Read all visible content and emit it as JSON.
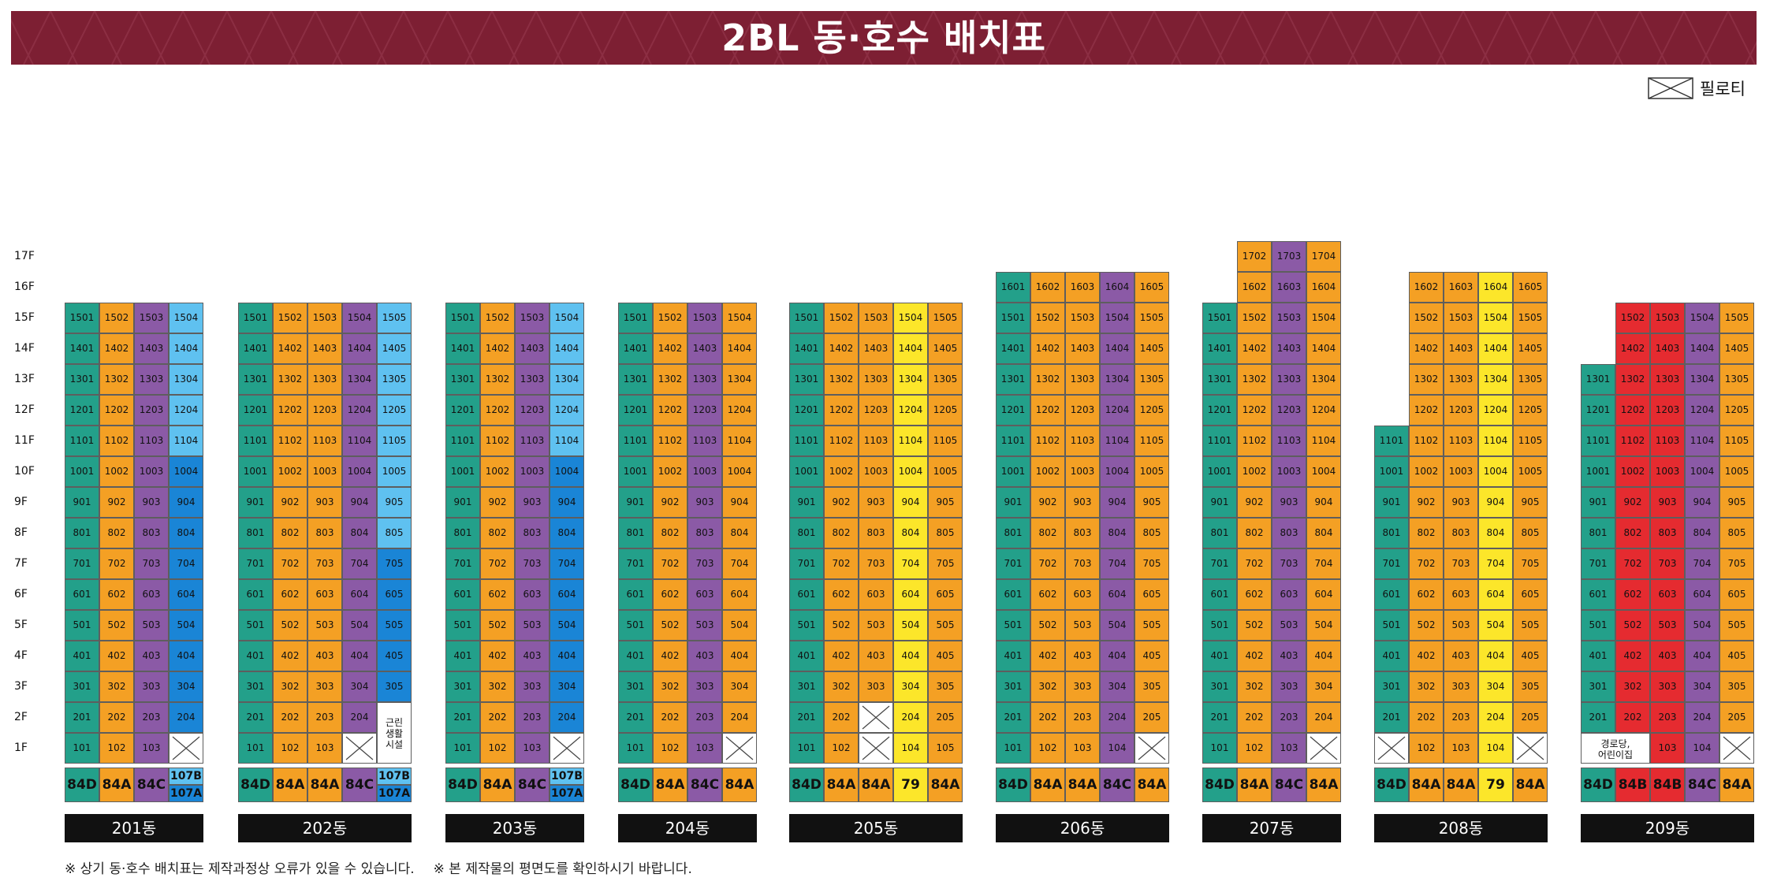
{
  "title": "2BL 동·호수 배치표",
  "legend": {
    "label": "필로티"
  },
  "floor_labels": [
    "1F",
    "2F",
    "3F",
    "4F",
    "5F",
    "6F",
    "7F",
    "8F",
    "9F",
    "10F",
    "11F",
    "12F",
    "13F",
    "14F",
    "15F",
    "16F",
    "17F"
  ],
  "colors": {
    "teal": "#23a08a",
    "orange": "#f4a024",
    "purple": "#8b5aa6",
    "lightblue": "#5fc1f0",
    "blue": "#1a85d6",
    "yellow": "#fce62a",
    "red": "#e52b30",
    "white": "#ffffff",
    "banner": "#7d1f33"
  },
  "buildings": [
    {
      "name": "201동",
      "columns": [
        {
          "line": 1,
          "color": "teal",
          "floors": [
            1,
            15
          ]
        },
        {
          "line": 2,
          "color": "orange",
          "floors": [
            1,
            15
          ]
        },
        {
          "line": 3,
          "color": "purple",
          "floors": [
            1,
            15
          ]
        },
        {
          "line": 4,
          "color": "lightblue",
          "floors": [
            2,
            15
          ],
          "color_alt": "blue",
          "alt_floors": [
            2,
            10
          ],
          "piloti": [
            1
          ]
        }
      ],
      "types": [
        {
          "t": "84D",
          "c": "teal"
        },
        {
          "t": "84A",
          "c": "orange"
        },
        {
          "t": "84C",
          "c": "purple"
        },
        {
          "split": [
            {
              "t": "107B",
              "c": "lightblue"
            },
            {
              "t": "107A",
              "c": "blue"
            }
          ]
        }
      ]
    },
    {
      "name": "202동",
      "columns": [
        {
          "line": 1,
          "color": "teal",
          "floors": [
            1,
            15
          ]
        },
        {
          "line": 2,
          "color": "orange",
          "floors": [
            1,
            15
          ]
        },
        {
          "line": 3,
          "color": "orange",
          "floors": [
            1,
            15
          ]
        },
        {
          "line": 4,
          "color": "purple",
          "floors": [
            2,
            15
          ],
          "piloti": [
            1
          ]
        },
        {
          "line": 5,
          "color": "lightblue",
          "floors": [
            3,
            15
          ],
          "color_alt": "blue",
          "alt_floors": [
            3,
            7
          ],
          "facility": "근린\n생활\n시설"
        }
      ],
      "types": [
        {
          "t": "84D",
          "c": "teal"
        },
        {
          "t": "84A",
          "c": "orange"
        },
        {
          "t": "84A",
          "c": "orange"
        },
        {
          "t": "84C",
          "c": "purple"
        },
        {
          "split": [
            {
              "t": "107B",
              "c": "lightblue"
            },
            {
              "t": "107A",
              "c": "blue"
            }
          ]
        }
      ]
    },
    {
      "name": "203동",
      "columns": [
        {
          "line": 1,
          "color": "teal",
          "floors": [
            1,
            15
          ]
        },
        {
          "line": 2,
          "color": "orange",
          "floors": [
            1,
            15
          ]
        },
        {
          "line": 3,
          "color": "purple",
          "floors": [
            1,
            15
          ]
        },
        {
          "line": 4,
          "color": "lightblue",
          "floors": [
            2,
            15
          ],
          "color_alt": "blue",
          "alt_floors": [
            2,
            10
          ],
          "piloti": [
            1
          ]
        }
      ],
      "types": [
        {
          "t": "84D",
          "c": "teal"
        },
        {
          "t": "84A",
          "c": "orange"
        },
        {
          "t": "84C",
          "c": "purple"
        },
        {
          "split": [
            {
              "t": "107B",
              "c": "lightblue"
            },
            {
              "t": "107A",
              "c": "blue"
            }
          ]
        }
      ]
    },
    {
      "name": "204동",
      "columns": [
        {
          "line": 1,
          "color": "teal",
          "floors": [
            1,
            15
          ]
        },
        {
          "line": 2,
          "color": "orange",
          "floors": [
            1,
            15
          ]
        },
        {
          "line": 3,
          "color": "purple",
          "floors": [
            1,
            15
          ]
        },
        {
          "line": 4,
          "color": "orange",
          "floors": [
            2,
            15
          ],
          "piloti": [
            1
          ]
        }
      ],
      "types": [
        {
          "t": "84D",
          "c": "teal"
        },
        {
          "t": "84A",
          "c": "orange"
        },
        {
          "t": "84C",
          "c": "purple"
        },
        {
          "t": "84A",
          "c": "orange"
        }
      ]
    },
    {
      "name": "205동",
      "columns": [
        {
          "line": 1,
          "color": "teal",
          "floors": [
            1,
            15
          ]
        },
        {
          "line": 2,
          "color": "orange",
          "floors": [
            1,
            15
          ]
        },
        {
          "line": 3,
          "color": "orange",
          "floors": [
            3,
            15
          ],
          "piloti": [
            1,
            2
          ]
        },
        {
          "line": 4,
          "color": "yellow",
          "floors": [
            1,
            15
          ]
        },
        {
          "line": 5,
          "color": "orange",
          "floors": [
            1,
            15
          ]
        }
      ],
      "types": [
        {
          "t": "84D",
          "c": "teal"
        },
        {
          "t": "84A",
          "c": "orange"
        },
        {
          "t": "84A",
          "c": "orange"
        },
        {
          "t": "79",
          "c": "yellow"
        },
        {
          "t": "84A",
          "c": "orange"
        }
      ]
    },
    {
      "name": "206동",
      "columns": [
        {
          "line": 1,
          "color": "teal",
          "floors": [
            1,
            16
          ]
        },
        {
          "line": 2,
          "color": "orange",
          "floors": [
            1,
            16
          ]
        },
        {
          "line": 3,
          "color": "orange",
          "floors": [
            1,
            16
          ]
        },
        {
          "line": 4,
          "color": "purple",
          "floors": [
            1,
            16
          ]
        },
        {
          "line": 5,
          "color": "orange",
          "floors": [
            2,
            16
          ],
          "piloti": [
            1
          ]
        }
      ],
      "types": [
        {
          "t": "84D",
          "c": "teal"
        },
        {
          "t": "84A",
          "c": "orange"
        },
        {
          "t": "84A",
          "c": "orange"
        },
        {
          "t": "84C",
          "c": "purple"
        },
        {
          "t": "84A",
          "c": "orange"
        }
      ]
    },
    {
      "name": "207동",
      "columns": [
        {
          "line": 1,
          "color": "teal",
          "floors": [
            1,
            15
          ]
        },
        {
          "line": 2,
          "color": "orange",
          "floors": [
            1,
            17
          ]
        },
        {
          "line": 3,
          "color": "purple",
          "floors": [
            1,
            17
          ]
        },
        {
          "line": 4,
          "color": "orange",
          "floors": [
            2,
            17
          ],
          "piloti": [
            1
          ]
        }
      ],
      "types": [
        {
          "t": "84D",
          "c": "teal"
        },
        {
          "t": "84A",
          "c": "orange"
        },
        {
          "t": "84C",
          "c": "purple"
        },
        {
          "t": "84A",
          "c": "orange"
        }
      ]
    },
    {
      "name": "208동",
      "columns": [
        {
          "line": 1,
          "color": "teal",
          "floors": [
            2,
            11
          ],
          "piloti": [
            1
          ]
        },
        {
          "line": 2,
          "color": "orange",
          "floors": [
            1,
            16
          ]
        },
        {
          "line": 3,
          "color": "orange",
          "floors": [
            1,
            16
          ]
        },
        {
          "line": 4,
          "color": "yellow",
          "floors": [
            1,
            16
          ]
        },
        {
          "line": 5,
          "color": "orange",
          "floors": [
            2,
            16
          ],
          "piloti": [
            1
          ]
        }
      ],
      "types": [
        {
          "t": "84D",
          "c": "teal"
        },
        {
          "t": "84A",
          "c": "orange"
        },
        {
          "t": "84A",
          "c": "orange"
        },
        {
          "t": "79",
          "c": "yellow"
        },
        {
          "t": "84A",
          "c": "orange"
        }
      ]
    },
    {
      "name": "209동",
      "columns": [
        {
          "line": 1,
          "color": "teal",
          "floors": [
            2,
            13
          ]
        },
        {
          "line": 2,
          "color": "red",
          "floors": [
            2,
            15
          ]
        },
        {
          "line": 3,
          "color": "red",
          "floors": [
            1,
            15
          ]
        },
        {
          "line": 4,
          "color": "purple",
          "floors": [
            1,
            15
          ]
        },
        {
          "line": 5,
          "color": "orange",
          "floors": [
            2,
            15
          ],
          "piloti": [
            1
          ]
        }
      ],
      "facility_bottom": "경로당,\n어린이집",
      "types": [
        {
          "t": "84D",
          "c": "teal"
        },
        {
          "t": "84B",
          "c": "red"
        },
        {
          "t": "84B",
          "c": "red"
        },
        {
          "t": "84C",
          "c": "purple"
        },
        {
          "t": "84A",
          "c": "orange"
        }
      ]
    }
  ],
  "footnotes": [
    "※ 상기 동·호수 배치표는 제작과정상 오류가 있을 수 있습니다.",
    "※ 본 제작물의 평면도를 확인하시기 바랍니다."
  ]
}
